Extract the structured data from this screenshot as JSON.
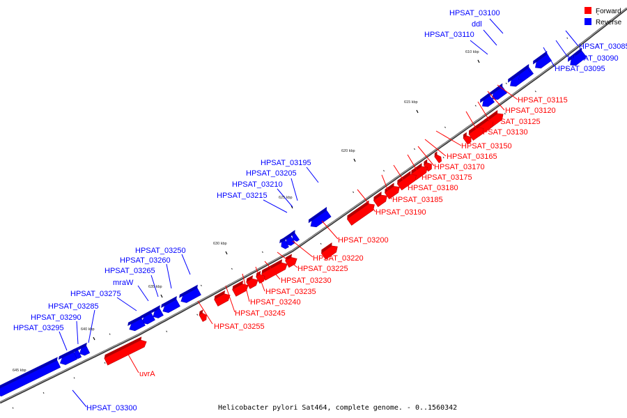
{
  "caption": "Helicobacter pylori Sat464, complete genome. - 0..1560342",
  "colors": {
    "forward": "#ff0000",
    "reverse": "#0000ff",
    "backbone": "#555555"
  },
  "legend": {
    "forward": "Forward",
    "reverse": "Reverse"
  },
  "scale_ticks": [
    {
      "label": "610 kbp"
    },
    {
      "label": "615 kbp"
    },
    {
      "label": "620 kbp"
    },
    {
      "label": "625 kbp"
    },
    {
      "label": "630 kbp"
    },
    {
      "label": "635 kbp"
    },
    {
      "label": "640 kbp"
    },
    {
      "label": "645 kbp"
    }
  ],
  "genes": {
    "forward": [
      {
        "name": "HPSAT_03115"
      },
      {
        "name": "HPSAT_03120"
      },
      {
        "name": "HPSAT_03125"
      },
      {
        "name": "HPSAT_03130"
      },
      {
        "name": "HPSAT_03150"
      },
      {
        "name": "HPSAT_03165"
      },
      {
        "name": "HPSAT_03170"
      },
      {
        "name": "HPSAT_03175"
      },
      {
        "name": "HPSAT_03180"
      },
      {
        "name": "HPSAT_03185"
      },
      {
        "name": "HPSAT_03190"
      },
      {
        "name": "HPSAT_03200"
      },
      {
        "name": "HPSAT_03220"
      },
      {
        "name": "HPSAT_03225"
      },
      {
        "name": "HPSAT_03230"
      },
      {
        "name": "HPSAT_03235"
      },
      {
        "name": "HPSAT_03240"
      },
      {
        "name": "HPSAT_03245"
      },
      {
        "name": "HPSAT_03255"
      },
      {
        "name": "uvrA"
      }
    ],
    "reverse": [
      {
        "name": "HPSAT_03100"
      },
      {
        "name": "ddl"
      },
      {
        "name": "HPSAT_03110"
      },
      {
        "name": "HPSAT_03085"
      },
      {
        "name": "HPSAT_03090"
      },
      {
        "name": "HPSAT_03095"
      },
      {
        "name": "HPSAT_03195"
      },
      {
        "name": "HPSAT_03205"
      },
      {
        "name": "HPSAT_03210"
      },
      {
        "name": "HPSAT_03215"
      },
      {
        "name": "HPSAT_03250"
      },
      {
        "name": "HPSAT_03260"
      },
      {
        "name": "HPSAT_03265"
      },
      {
        "name": "mraW"
      },
      {
        "name": "HPSAT_03275"
      },
      {
        "name": "HPSAT_03285"
      },
      {
        "name": "HPSAT_03290"
      },
      {
        "name": "HPSAT_03295"
      },
      {
        "name": "HPSAT_03300"
      }
    ]
  }
}
